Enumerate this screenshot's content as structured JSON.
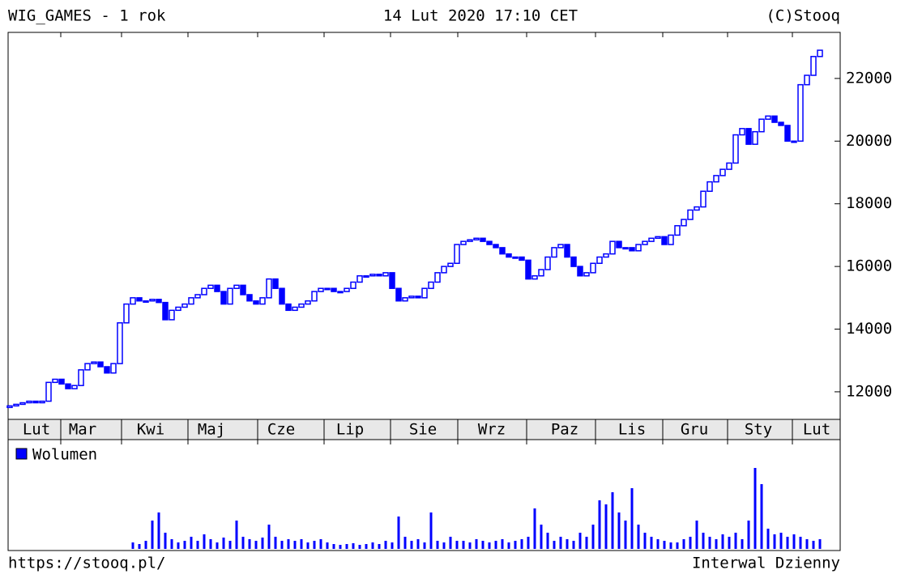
{
  "chart_data": {
    "type": "candlestick",
    "title": "WIG_GAMES - 1 rok",
    "subtitle": "14 Lut 2020 17:10 CET",
    "source": "(C)Stooq",
    "footer_left": "https://stooq.pl/",
    "footer_right": "Interwal Dzienny",
    "categories": [
      "Lut",
      "Mar",
      "Kwi",
      "Maj",
      "Cze",
      "Lip",
      "Sie",
      "Wrz",
      "Paz",
      "Lis",
      "Gru",
      "Sty",
      "Lut"
    ],
    "color": "#0000ff",
    "ylim": [
      11120,
      23470
    ],
    "yticks": [
      12000,
      14000,
      16000,
      18000,
      20000,
      22000
    ],
    "open": [
      11500,
      11550,
      11600,
      11650,
      11700,
      11650,
      11700,
      12300,
      12400,
      12250,
      12100,
      12200,
      12700,
      12900,
      12950,
      12800,
      12600,
      12900,
      14200,
      14800,
      15000,
      14900,
      14900,
      14950,
      14850,
      14300,
      14600,
      14700,
      14800,
      15000,
      15100,
      15300,
      15400,
      15200,
      14800,
      15300,
      15400,
      15100,
      14900,
      14800,
      15000,
      15600,
      15300,
      14800,
      14600,
      14700,
      14800,
      14900,
      15200,
      15300,
      15300,
      15200,
      15200,
      15300,
      15500,
      15700,
      15700,
      15750,
      15700,
      15800,
      15300,
      14900,
      15000,
      15050,
      15000,
      15300,
      15500,
      15800,
      16000,
      16100,
      16700,
      16800,
      16850,
      16900,
      16800,
      16700,
      16600,
      16400,
      16300,
      16300,
      16200,
      15600,
      15700,
      15900,
      16300,
      16600,
      16700,
      16300,
      16000,
      15700,
      15800,
      16100,
      16300,
      16400,
      16800,
      16600,
      16600,
      16500,
      16700,
      16800,
      16900,
      16950,
      16700,
      17000,
      17300,
      17500,
      17800,
      17900,
      18400,
      18700,
      18900,
      19100,
      19300,
      20200,
      20400,
      19900,
      20300,
      20700,
      20800,
      20600,
      20500,
      20000,
      20000,
      21800,
      22100,
      22700
    ],
    "close": [
      11550,
      11600,
      11650,
      11700,
      11650,
      11700,
      12300,
      12400,
      12250,
      12100,
      12200,
      12700,
      12900,
      12950,
      12800,
      12600,
      12900,
      14200,
      14800,
      15000,
      14900,
      14900,
      14950,
      14850,
      14300,
      14600,
      14700,
      14800,
      15000,
      15100,
      15300,
      15400,
      15200,
      14800,
      15300,
      15400,
      15100,
      14900,
      14800,
      15000,
      15600,
      15300,
      14800,
      14600,
      14700,
      14800,
      14900,
      15200,
      15300,
      15300,
      15200,
      15200,
      15300,
      15500,
      15700,
      15700,
      15750,
      15700,
      15800,
      15300,
      14900,
      15000,
      15050,
      15000,
      15300,
      15500,
      15800,
      16000,
      16100,
      16700,
      16800,
      16850,
      16900,
      16800,
      16700,
      16600,
      16400,
      16300,
      16300,
      16200,
      15600,
      15700,
      15900,
      16300,
      16600,
      16700,
      16300,
      16000,
      15700,
      15800,
      16100,
      16300,
      16400,
      16800,
      16600,
      16600,
      16500,
      16700,
      16800,
      16900,
      16950,
      16700,
      17000,
      17300,
      17500,
      17800,
      17900,
      18400,
      18700,
      18900,
      19100,
      19300,
      20200,
      20400,
      19900,
      20300,
      20700,
      20800,
      20600,
      20500,
      20000,
      20000,
      21800,
      22100,
      22700,
      22900
    ],
    "volume_label": "Wolumen",
    "volume": [
      null,
      null,
      null,
      null,
      null,
      null,
      null,
      null,
      null,
      null,
      null,
      null,
      null,
      null,
      null,
      null,
      null,
      null,
      null,
      8,
      6,
      10,
      35,
      45,
      20,
      12,
      8,
      10,
      15,
      10,
      18,
      12,
      8,
      14,
      10,
      35,
      15,
      12,
      10,
      14,
      30,
      15,
      10,
      12,
      10,
      12,
      8,
      10,
      12,
      8,
      6,
      5,
      6,
      7,
      5,
      6,
      8,
      6,
      10,
      8,
      40,
      15,
      10,
      12,
      8,
      45,
      10,
      8,
      15,
      10,
      10,
      8,
      12,
      10,
      8,
      10,
      12,
      8,
      10,
      12,
      15,
      50,
      30,
      20,
      10,
      15,
      12,
      10,
      20,
      15,
      30,
      60,
      55,
      70,
      45,
      35,
      75,
      30,
      20,
      15,
      12,
      10,
      8,
      8,
      12,
      15,
      35,
      20,
      15,
      12,
      18,
      15,
      20,
      12,
      35,
      100,
      80,
      25,
      18,
      20,
      15,
      18,
      15,
      12,
      10,
      12
    ]
  }
}
